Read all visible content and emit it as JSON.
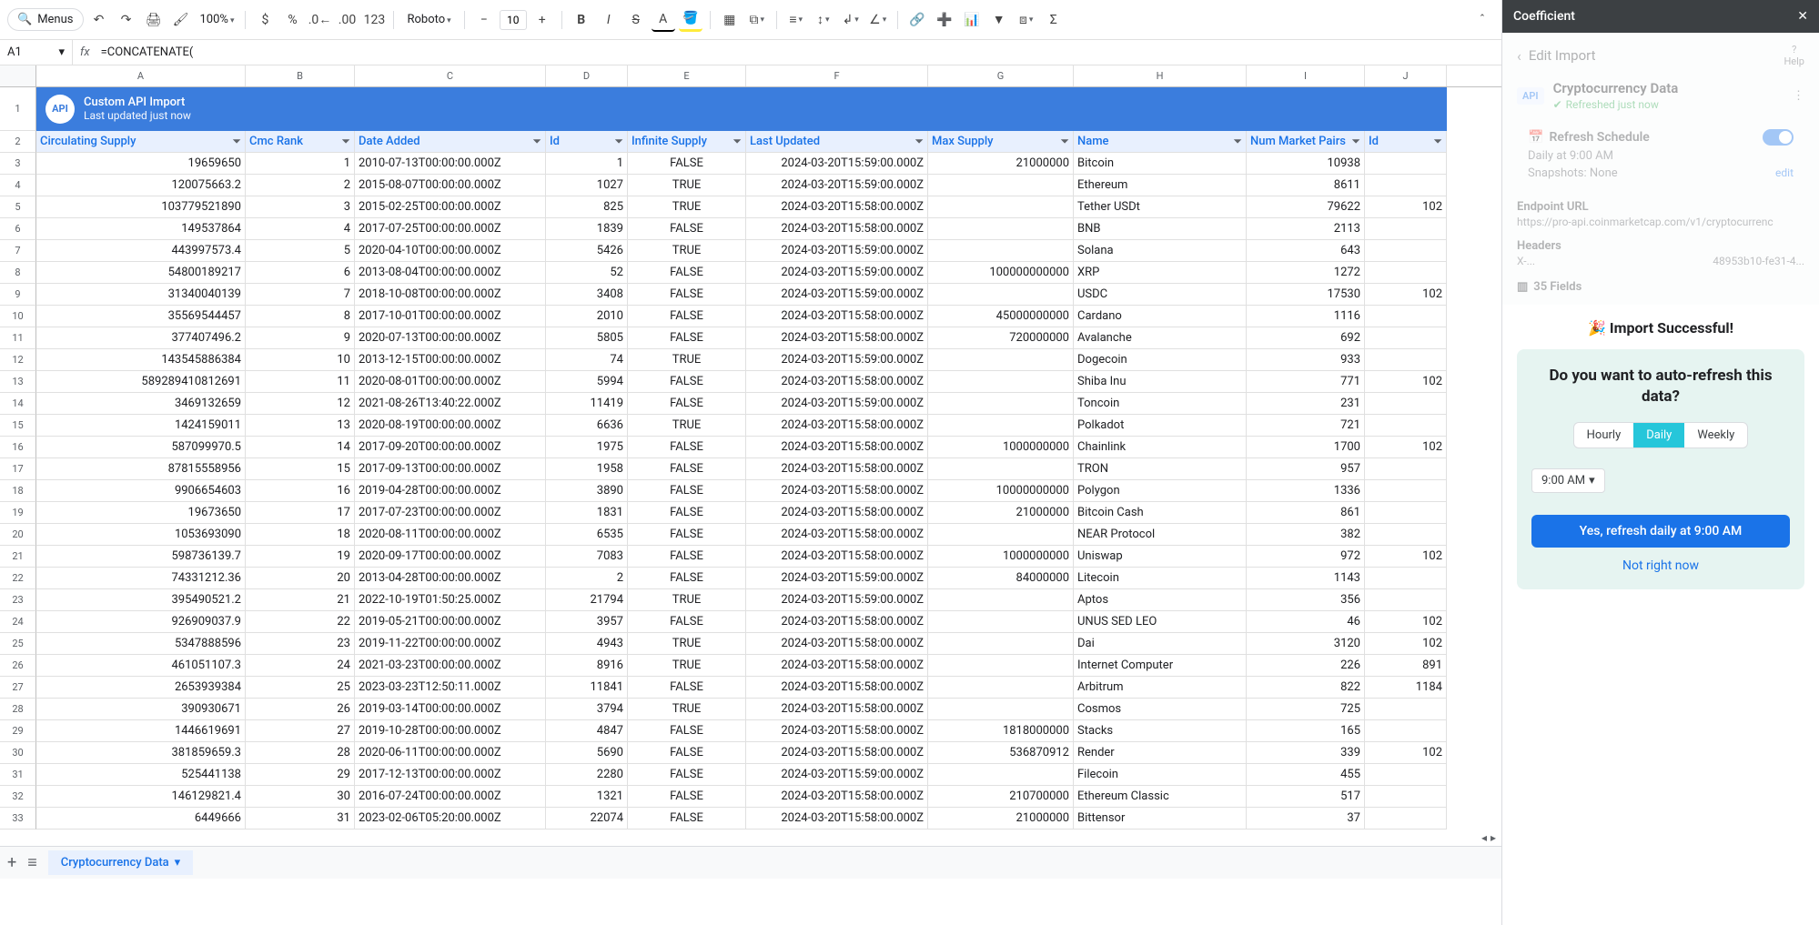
{
  "toolbar": {
    "menus": "Menus",
    "zoom": "100%",
    "num123": "123",
    "font": "Roboto",
    "size": "10"
  },
  "formula": {
    "cellRef": "A1",
    "fx": "fx",
    "text": "=CONCATENATE("
  },
  "columns": [
    "A",
    "B",
    "C",
    "D",
    "E",
    "F",
    "G",
    "H",
    "I",
    "J"
  ],
  "colWidths": {
    "A": 230,
    "B": 120,
    "C": 210,
    "D": 90,
    "E": 130,
    "F": 200,
    "G": 160,
    "H": 190,
    "I": 130,
    "J": 90
  },
  "banner": {
    "badge": "API",
    "title": "Custom API Import",
    "sub": "Last updated just now"
  },
  "headers": [
    "Circulating Supply",
    "Cmc Rank",
    "Date Added",
    "Id",
    "Infinite Supply",
    "Last Updated",
    "Max Supply",
    "Name",
    "Num Market Pairs",
    "Id"
  ],
  "alignments": [
    "num",
    "num",
    "left",
    "num",
    "center",
    "num",
    "num",
    "left",
    "num",
    "num"
  ],
  "rows": [
    [
      "19659650",
      "1",
      "2010-07-13T00:00:00.000Z",
      "1",
      "FALSE",
      "2024-03-20T15:59:00.000Z",
      "21000000",
      "Bitcoin",
      "10938",
      ""
    ],
    [
      "120075663.2",
      "2",
      "2015-08-07T00:00:00.000Z",
      "1027",
      "TRUE",
      "2024-03-20T15:59:00.000Z",
      "",
      "Ethereum",
      "8611",
      ""
    ],
    [
      "103779521890",
      "3",
      "2015-02-25T00:00:00.000Z",
      "825",
      "TRUE",
      "2024-03-20T15:58:00.000Z",
      "",
      "Tether USDt",
      "79622",
      "102"
    ],
    [
      "149537864",
      "4",
      "2017-07-25T00:00:00.000Z",
      "1839",
      "FALSE",
      "2024-03-20T15:58:00.000Z",
      "",
      "BNB",
      "2113",
      ""
    ],
    [
      "443997573.4",
      "5",
      "2020-04-10T00:00:00.000Z",
      "5426",
      "TRUE",
      "2024-03-20T15:59:00.000Z",
      "",
      "Solana",
      "643",
      ""
    ],
    [
      "54800189217",
      "6",
      "2013-08-04T00:00:00.000Z",
      "52",
      "FALSE",
      "2024-03-20T15:59:00.000Z",
      "100000000000",
      "XRP",
      "1272",
      ""
    ],
    [
      "31340040139",
      "7",
      "2018-10-08T00:00:00.000Z",
      "3408",
      "FALSE",
      "2024-03-20T15:59:00.000Z",
      "",
      "USDC",
      "17530",
      "102"
    ],
    [
      "35569544457",
      "8",
      "2017-10-01T00:00:00.000Z",
      "2010",
      "FALSE",
      "2024-03-20T15:58:00.000Z",
      "45000000000",
      "Cardano",
      "1116",
      ""
    ],
    [
      "377407496.2",
      "9",
      "2020-07-13T00:00:00.000Z",
      "5805",
      "FALSE",
      "2024-03-20T15:58:00.000Z",
      "720000000",
      "Avalanche",
      "692",
      ""
    ],
    [
      "143545886384",
      "10",
      "2013-12-15T00:00:00.000Z",
      "74",
      "TRUE",
      "2024-03-20T15:59:00.000Z",
      "",
      "Dogecoin",
      "933",
      ""
    ],
    [
      "589289410812691",
      "11",
      "2020-08-01T00:00:00.000Z",
      "5994",
      "FALSE",
      "2024-03-20T15:58:00.000Z",
      "",
      "Shiba Inu",
      "771",
      "102"
    ],
    [
      "3469132659",
      "12",
      "2021-08-26T13:40:22.000Z",
      "11419",
      "FALSE",
      "2024-03-20T15:59:00.000Z",
      "",
      "Toncoin",
      "231",
      ""
    ],
    [
      "1424159011",
      "13",
      "2020-08-19T00:00:00.000Z",
      "6636",
      "TRUE",
      "2024-03-20T15:58:00.000Z",
      "",
      "Polkadot",
      "721",
      ""
    ],
    [
      "587099970.5",
      "14",
      "2017-09-20T00:00:00.000Z",
      "1975",
      "FALSE",
      "2024-03-20T15:58:00.000Z",
      "1000000000",
      "Chainlink",
      "1700",
      "102"
    ],
    [
      "87815558956",
      "15",
      "2017-09-13T00:00:00.000Z",
      "1958",
      "FALSE",
      "2024-03-20T15:58:00.000Z",
      "",
      "TRON",
      "957",
      ""
    ],
    [
      "9906654603",
      "16",
      "2019-04-28T00:00:00.000Z",
      "3890",
      "FALSE",
      "2024-03-20T15:58:00.000Z",
      "10000000000",
      "Polygon",
      "1336",
      ""
    ],
    [
      "19673650",
      "17",
      "2017-07-23T00:00:00.000Z",
      "1831",
      "FALSE",
      "2024-03-20T15:58:00.000Z",
      "21000000",
      "Bitcoin Cash",
      "861",
      ""
    ],
    [
      "1053693090",
      "18",
      "2020-08-11T00:00:00.000Z",
      "6535",
      "FALSE",
      "2024-03-20T15:58:00.000Z",
      "",
      "NEAR Protocol",
      "382",
      ""
    ],
    [
      "598736139.7",
      "19",
      "2020-09-17T00:00:00.000Z",
      "7083",
      "FALSE",
      "2024-03-20T15:58:00.000Z",
      "1000000000",
      "Uniswap",
      "972",
      "102"
    ],
    [
      "74331212.36",
      "20",
      "2013-04-28T00:00:00.000Z",
      "2",
      "FALSE",
      "2024-03-20T15:59:00.000Z",
      "84000000",
      "Litecoin",
      "1143",
      ""
    ],
    [
      "395490521.2",
      "21",
      "2022-10-19T01:50:25.000Z",
      "21794",
      "TRUE",
      "2024-03-20T15:59:00.000Z",
      "",
      "Aptos",
      "356",
      ""
    ],
    [
      "926909037.9",
      "22",
      "2019-05-21T00:00:00.000Z",
      "3957",
      "FALSE",
      "2024-03-20T15:58:00.000Z",
      "",
      "UNUS SED LEO",
      "46",
      "102"
    ],
    [
      "5347888596",
      "23",
      "2019-11-22T00:00:00.000Z",
      "4943",
      "TRUE",
      "2024-03-20T15:58:00.000Z",
      "",
      "Dai",
      "3120",
      "102"
    ],
    [
      "461051107.3",
      "24",
      "2021-03-23T00:00:00.000Z",
      "8916",
      "TRUE",
      "2024-03-20T15:58:00.000Z",
      "",
      "Internet Computer",
      "226",
      "891"
    ],
    [
      "2653939384",
      "25",
      "2023-03-23T12:50:11.000Z",
      "11841",
      "FALSE",
      "2024-03-20T15:58:00.000Z",
      "",
      "Arbitrum",
      "822",
      "1184"
    ],
    [
      "390930671",
      "26",
      "2019-03-14T00:00:00.000Z",
      "3794",
      "TRUE",
      "2024-03-20T15:58:00.000Z",
      "",
      "Cosmos",
      "725",
      ""
    ],
    [
      "1446619691",
      "27",
      "2019-10-28T00:00:00.000Z",
      "4847",
      "FALSE",
      "2024-03-20T15:58:00.000Z",
      "1818000000",
      "Stacks",
      "165",
      ""
    ],
    [
      "381859659.3",
      "28",
      "2020-06-11T00:00:00.000Z",
      "5690",
      "FALSE",
      "2024-03-20T15:58:00.000Z",
      "536870912",
      "Render",
      "339",
      "102"
    ],
    [
      "525441138",
      "29",
      "2017-12-13T00:00:00.000Z",
      "2280",
      "FALSE",
      "2024-03-20T15:59:00.000Z",
      "",
      "Filecoin",
      "455",
      ""
    ],
    [
      "146129821.4",
      "30",
      "2016-07-24T00:00:00.000Z",
      "1321",
      "FALSE",
      "2024-03-20T15:58:00.000Z",
      "210700000",
      "Ethereum Classic",
      "517",
      ""
    ],
    [
      "6449666",
      "31",
      "2023-02-06T05:20:00.000Z",
      "22074",
      "FALSE",
      "2024-03-20T15:58:00.000Z",
      "21000000",
      "Bittensor",
      "37",
      ""
    ]
  ],
  "sheetTab": "Cryptocurrency Data",
  "sidebar": {
    "title": "Coefficient",
    "editImport": "Edit Import",
    "help": "Help",
    "apiBadge": "API",
    "dataTitle": "Cryptocurrency Data",
    "refreshed": "Refreshed just now",
    "schedule": {
      "title": "Refresh Schedule",
      "line1": "Daily at 9:00 AM",
      "line2": "Snapshots: None",
      "edit": "edit"
    },
    "endpoint": {
      "label": "Endpoint URL",
      "value": "https://pro-api.coinmarketcap.com/v1/cryptocurrenc"
    },
    "headersSection": {
      "label": "Headers",
      "key": "X-...",
      "val": "48953b10-fe31-4..."
    },
    "fields": "35 Fields",
    "success": "🎉 Import Successful!",
    "prompt": {
      "q": "Do you want to auto-refresh this data?",
      "opts": [
        "Hourly",
        "Daily",
        "Weekly"
      ],
      "active": "Daily",
      "time": "9:00 AM",
      "cta": "Yes, refresh daily at 9:00 AM",
      "decline": "Not right now"
    }
  }
}
